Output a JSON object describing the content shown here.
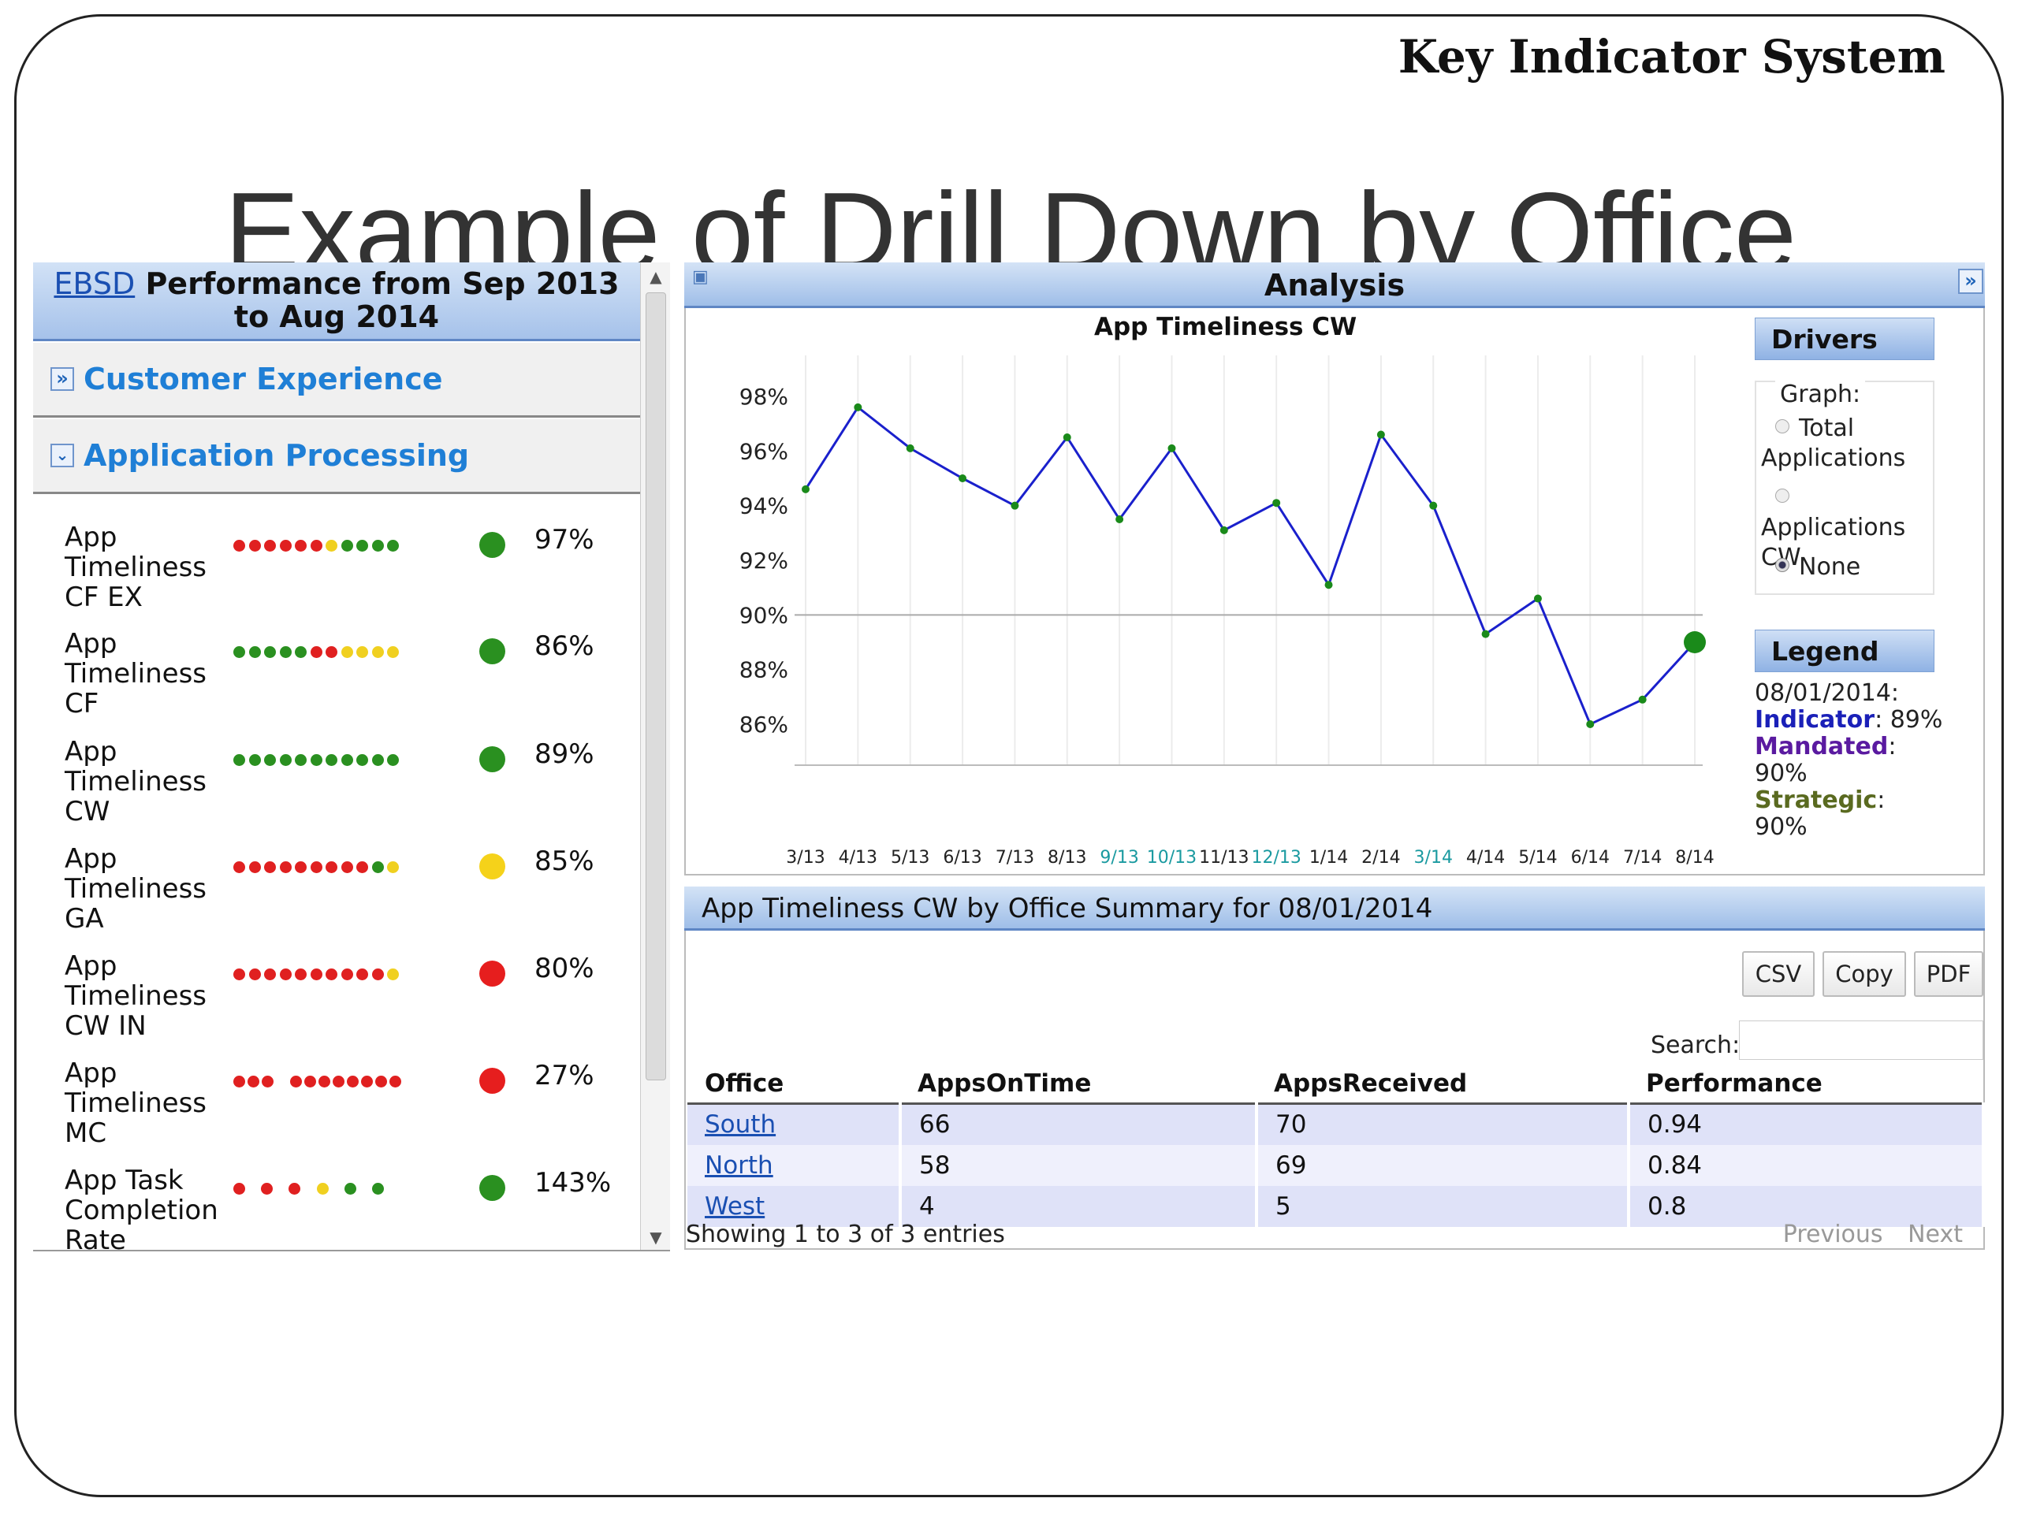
{
  "brand": "Key Indicator System",
  "slide_title": "Example of Drill Down by Office",
  "left_panel": {
    "header_link": "EBSD",
    "header_text": "Performance from Sep 2013 to Aug 2014",
    "sections": [
      {
        "label": "Customer Experience",
        "icon": "double-chevron-right-icon"
      },
      {
        "label": "Application Processing",
        "icon": "double-chevron-down-icon"
      }
    ],
    "indicators": [
      {
        "name": "App Timeliness CF EX",
        "status": "green",
        "value": "97%",
        "dots": [
          "#e02020",
          "#e02020",
          "#e02020",
          "#e02020",
          "#e02020",
          "#e02020",
          "#f0d020",
          "#2a9020",
          "#2a9020",
          "#2a9020",
          "#2a9020"
        ]
      },
      {
        "name": "App Timeliness CF",
        "status": "green",
        "value": "86%",
        "dots": [
          "#2a9020",
          "#2a9020",
          "#2a9020",
          "#2a9020",
          "#2a9020",
          "#e02020",
          "#e02020",
          "#f0d020",
          "#f0d020",
          "#f0d020",
          "#f0d020"
        ]
      },
      {
        "name": "App Timeliness CW",
        "status": "green",
        "value": "89%",
        "dots": [
          "#2a9020",
          "#2a9020",
          "#2a9020",
          "#2a9020",
          "#2a9020",
          "#2a9020",
          "#2a9020",
          "#2a9020",
          "#2a9020",
          "#2a9020",
          "#2a9020"
        ]
      },
      {
        "name": "App Timeliness GA",
        "status": "yellow",
        "value": "85%",
        "dots": [
          "#e02020",
          "#e02020",
          "#e02020",
          "#e02020",
          "#e02020",
          "#e02020",
          "#e02020",
          "#e02020",
          "#e02020",
          "#2a9020",
          "#f0d020"
        ]
      },
      {
        "name": "App Timeliness CW IN",
        "status": "red",
        "value": "80%",
        "dots": [
          "#e02020",
          "#e02020",
          "#e02020",
          "#e02020",
          "#e02020",
          "#e02020",
          "#e02020",
          "#e02020",
          "#e02020",
          "#e02020",
          "#f0d020"
        ]
      },
      {
        "name": "App Timeliness MC",
        "status": "red",
        "value": "27%",
        "dots": [
          "#e02020",
          "#e02020",
          "#e02020",
          null,
          "#e02020",
          "#e02020",
          "#e02020",
          "#e02020",
          "#e02020",
          "#e02020",
          "#e02020",
          "#e02020"
        ]
      },
      {
        "name": "App Task Completion Rate",
        "status": "green",
        "value": "143%",
        "dots": [
          "#e02020",
          null,
          "#e02020",
          null,
          "#e02020",
          null,
          "#f0d020",
          null,
          "#2a9020",
          null,
          "#2a9020"
        ]
      }
    ]
  },
  "status_colors": {
    "green": "#2a9020",
    "yellow": "#f5d21a",
    "red": "#e61e1e"
  },
  "analysis": {
    "title": "Analysis",
    "chart_title": "App Timeliness CW",
    "drivers_title": "Drivers",
    "graph_label": "Graph:",
    "options": [
      {
        "label": "Total Applications",
        "selected": false
      },
      {
        "label": "Applications CW",
        "selected": false
      },
      {
        "label": "None",
        "selected": true
      }
    ],
    "legend_title": "Legend",
    "legend_date": "08/01/2014:",
    "legend_items": [
      {
        "key": "Indicator",
        "value": "89%",
        "color": "#1a20b8"
      },
      {
        "key": "Mandated",
        "value": "90%",
        "color": "#5a1aa0"
      },
      {
        "key": "Strategic",
        "value": "90%",
        "color": "#5a6a20"
      }
    ]
  },
  "chart_data": {
    "type": "line",
    "title": "App Timeliness CW",
    "x": [
      "3/13",
      "4/13",
      "5/13",
      "6/13",
      "7/13",
      "8/13",
      "9/13",
      "10/13",
      "11/13",
      "12/13",
      "1/14",
      "2/14",
      "3/14",
      "4/14",
      "5/14",
      "6/14",
      "7/14",
      "8/14"
    ],
    "highlight_x": [
      "9/13",
      "10/13",
      "12/13",
      "3/14"
    ],
    "series": [
      {
        "values": [
          94.6,
          97.6,
          96.1,
          95.0,
          94.0,
          96.5,
          93.5,
          96.1,
          93.1,
          94.1,
          91.1,
          96.6,
          94.0,
          89.3,
          90.6,
          86.0,
          86.9,
          89.0
        ],
        "color": "#1a20cc",
        "marker_color": "#1a8a1a"
      }
    ],
    "reference_line": 90,
    "y_ticks": [
      "98%",
      "96%",
      "94%",
      "92%",
      "90%",
      "88%",
      "86%"
    ],
    "y_tick_values": [
      98,
      96,
      94,
      92,
      90,
      88,
      86
    ],
    "ylim": [
      84.5,
      99.5
    ],
    "grid": true
  },
  "summary": {
    "title": "App Timeliness CW by Office Summary for 08/01/2014",
    "buttons": [
      "CSV",
      "Copy",
      "PDF"
    ],
    "search_label": "Search:",
    "columns": [
      "Office",
      "AppsOnTime",
      "AppsReceived",
      "Performance"
    ],
    "rows": [
      {
        "office": "South",
        "on_time": "66",
        "received": "70",
        "performance": "0.94"
      },
      {
        "office": "North",
        "on_time": "58",
        "received": "69",
        "performance": "0.84"
      },
      {
        "office": "West",
        "on_time": "4",
        "received": "5",
        "performance": "0.8"
      }
    ],
    "showing": "Showing 1 to 3 of 3 entries",
    "prev": "Previous",
    "next": "Next"
  }
}
